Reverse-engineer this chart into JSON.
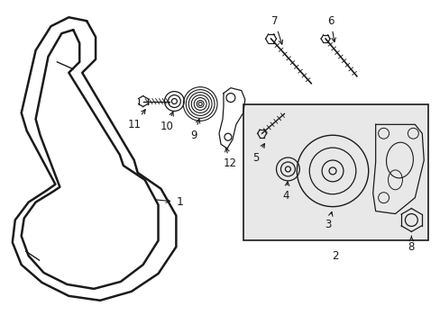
{
  "bg_color": "#ffffff",
  "box_bg": "#e8e8e8",
  "line_color": "#1a1a1a",
  "fig_width": 4.89,
  "fig_height": 3.6,
  "dpi": 100
}
